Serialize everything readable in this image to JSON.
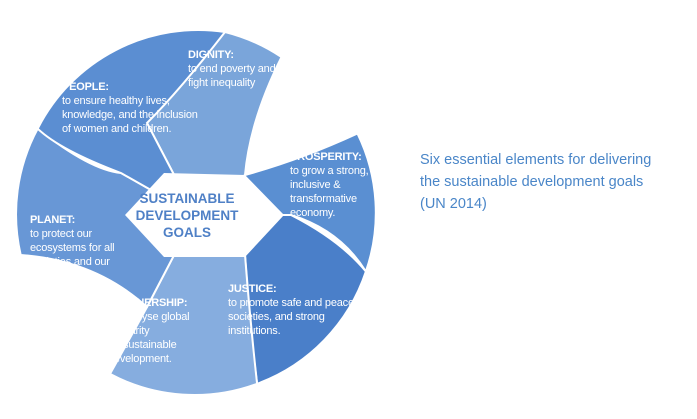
{
  "diagram": {
    "center_label": "SUSTAINABLE\nDEVELOPMENT\nGOALS",
    "segments": [
      {
        "title": "DIGNITY:",
        "desc": "to end poverty and\nfight inequality",
        "color": "#7aa5da"
      },
      {
        "title": "PROSPERITY:",
        "desc": "to grow a strong,\ninclusive &\ntransformative\neconomy.",
        "color": "#5a8fd2"
      },
      {
        "title": "JUSTICE:",
        "desc": "to promote safe and peaceful\nsocieties, and strong\ninstitutions.",
        "color": "#4a7fc9"
      },
      {
        "title": "PARTNERSHIP:",
        "desc": "to catalyse global\nsolidarity\nfor sustainable\ndevelopment.",
        "color": "#86addf"
      },
      {
        "title": "PLANET:",
        "desc": "to protect our\necosystems for all\nsocieties and our\nchildren.",
        "color": "#6897d6"
      },
      {
        "title": "PEOPLE:",
        "desc": "to ensure healthy lives,\nknowledge, and the inclusion\nof women and children.",
        "color": "#5b8ed2"
      }
    ],
    "center_color": "#ffffff",
    "text_color": "#ffffff",
    "center_text_color": "#4f80c6"
  },
  "caption": "Six essential elements for delivering\nthe sustainable development goals\n(UN 2014)",
  "caption_color": "#4a86c8"
}
